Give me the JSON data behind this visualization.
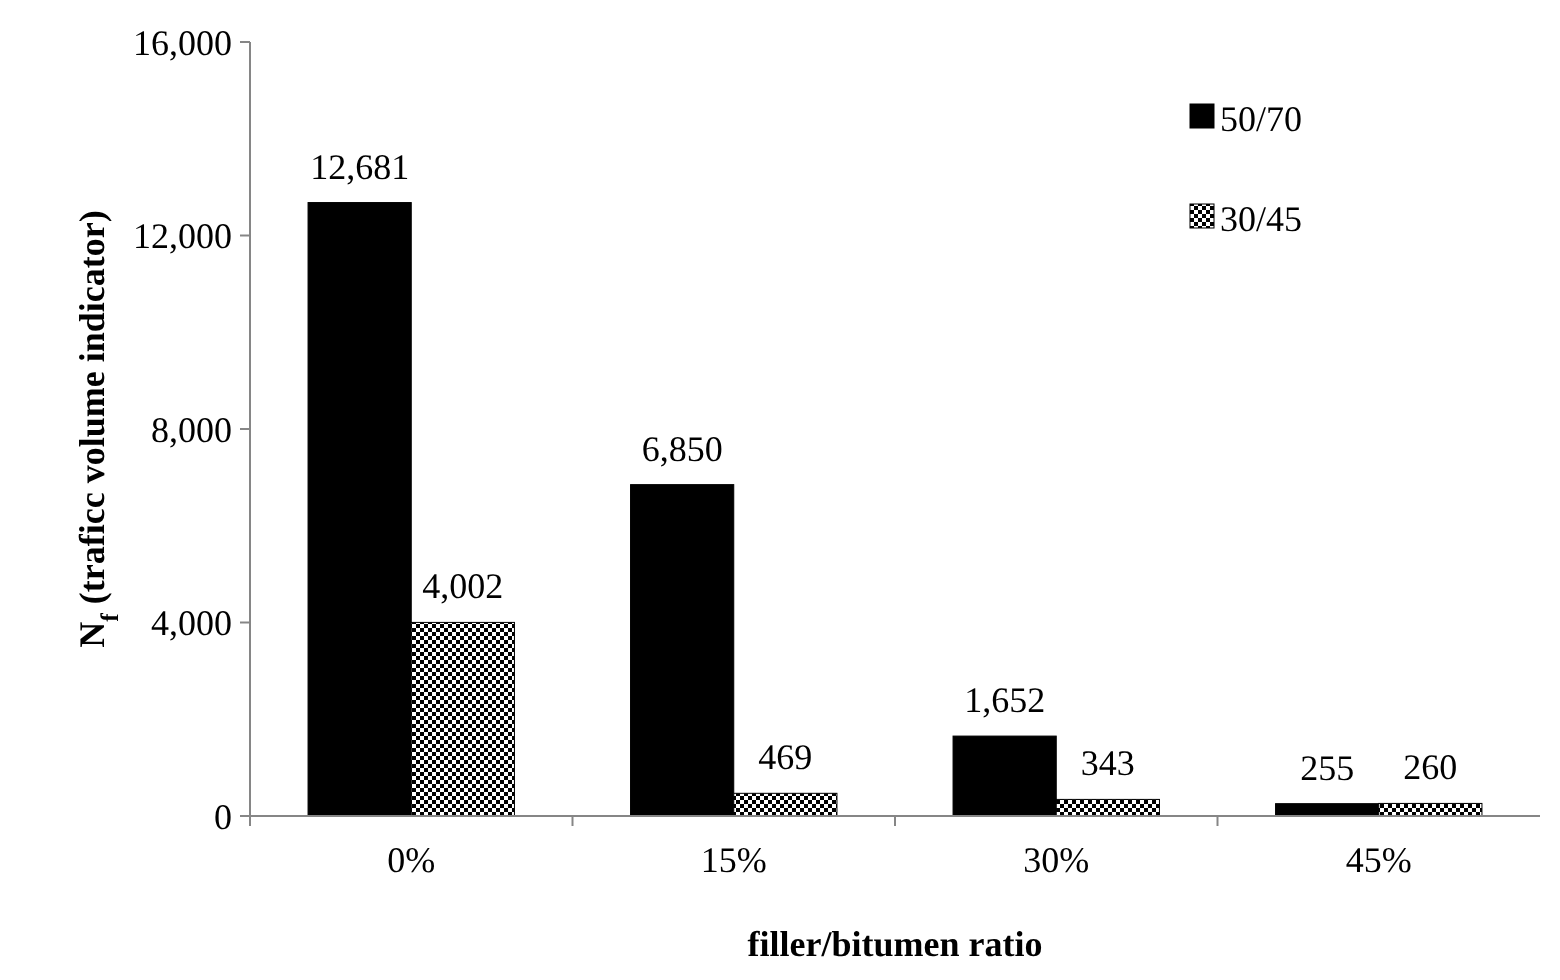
{
  "chart_data": {
    "type": "bar",
    "xlabel": "filler/bitumen ratio",
    "ylabel": "N$_{f}$ (traficc volume indicator)",
    "categories": [
      "0%",
      "15%",
      "30%",
      "45%"
    ],
    "series": [
      {
        "name": "50/70",
        "color": "#000000",
        "values": [
          12681,
          6850,
          1652,
          255
        ],
        "value_labels": [
          "12,681",
          "6,850",
          "1,652",
          "255"
        ]
      },
      {
        "name": "30/45",
        "color": "#000000",
        "values": [
          4002,
          469,
          343,
          260
        ],
        "value_labels": [
          "4,002",
          "469",
          "343",
          "260"
        ]
      }
    ],
    "ylim": [
      0,
      16000
    ],
    "yticks": [
      {
        "value": 0,
        "label": "0"
      },
      {
        "value": 4000,
        "label": "4,000"
      },
      {
        "value": 8000,
        "label": "8,000"
      },
      {
        "value": 12000,
        "label": "12,000"
      },
      {
        "value": 16000,
        "label": "16,000"
      }
    ],
    "legend": "top right"
  }
}
